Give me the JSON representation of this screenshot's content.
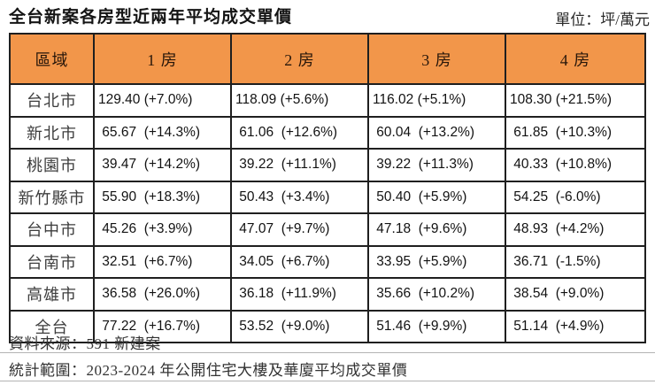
{
  "header": {
    "title": "全台新案各房型近兩年平均成交單價",
    "unit_label": "單位：坪/萬元"
  },
  "table": {
    "columns": [
      "區域",
      "1 房",
      "2 房",
      "3 房",
      "4 房"
    ],
    "rows": [
      {
        "region": "台北市",
        "cells": [
          "129.40 (+7.0%)",
          "118.09 (+5.6%)",
          "116.02 (+5.1%)",
          "108.30 (+21.5%)"
        ]
      },
      {
        "region": "新北市",
        "cells": [
          " 65.67  (+14.3%)",
          " 61.06  (+12.6%)",
          " 60.04  (+13.2%)",
          " 61.85  (+10.3%)"
        ]
      },
      {
        "region": "桃園市",
        "cells": [
          " 39.47  (+14.2%)",
          " 39.22  (+11.1%)",
          " 39.22  (+11.3%)",
          " 40.33  (+10.8%)"
        ]
      },
      {
        "region": "新竹縣市",
        "cells": [
          " 55.90  (+18.3%)",
          " 50.43  (+3.4%)",
          " 50.40  (+5.9%)",
          " 54.25  (-6.0%)"
        ]
      },
      {
        "region": "台中市",
        "cells": [
          " 45.26  (+3.9%)",
          " 47.07  (+9.7%)",
          " 47.18  (+9.6%)",
          " 48.93  (+4.2%)"
        ]
      },
      {
        "region": "台南市",
        "cells": [
          " 32.51  (+6.7%)",
          " 34.05  (+6.7%)",
          " 33.95  (+5.9%)",
          " 36.71  (-1.5%)"
        ]
      },
      {
        "region": "高雄市",
        "cells": [
          " 36.58  (+26.0%)",
          " 36.18  (+11.9%)",
          " 35.66  (+10.2%)",
          " 38.54  (+9.0%)"
        ]
      },
      {
        "region": "全台",
        "cells": [
          " 77.22  (+16.7%)",
          " 53.52  (+9.0%)",
          " 51.46  (+9.9%)",
          " 51.14  (+4.9%)"
        ]
      }
    ]
  },
  "footer": {
    "source": "資料來源：591 新建案",
    "scope": "統計範圍：2023-2024 年公開住宅大樓及華廈平均成交單價"
  },
  "colors": {
    "header_bg": "#F2964A",
    "table_border": "#1f1f1f",
    "divider": "#b3b3b3"
  },
  "chart_data": {
    "type": "table",
    "title": "全台新案各房型近兩年平均成交單價",
    "unit": "坪/萬元",
    "columns": [
      "1房",
      "2房",
      "3房",
      "4房"
    ],
    "series": [
      {
        "region": "台北市",
        "values": [
          129.4,
          118.09,
          116.02,
          108.3
        ],
        "change_pct": [
          7.0,
          5.6,
          5.1,
          21.5
        ]
      },
      {
        "region": "新北市",
        "values": [
          65.67,
          61.06,
          60.04,
          61.85
        ],
        "change_pct": [
          14.3,
          12.6,
          13.2,
          10.3
        ]
      },
      {
        "region": "桃園市",
        "values": [
          39.47,
          39.22,
          39.22,
          40.33
        ],
        "change_pct": [
          14.2,
          11.1,
          11.3,
          10.8
        ]
      },
      {
        "region": "新竹縣市",
        "values": [
          55.9,
          50.43,
          50.4,
          54.25
        ],
        "change_pct": [
          18.3,
          3.4,
          5.9,
          -6.0
        ]
      },
      {
        "region": "台中市",
        "values": [
          45.26,
          47.07,
          47.18,
          48.93
        ],
        "change_pct": [
          3.9,
          9.7,
          9.6,
          4.2
        ]
      },
      {
        "region": "台南市",
        "values": [
          32.51,
          34.05,
          33.95,
          36.71
        ],
        "change_pct": [
          6.7,
          6.7,
          5.9,
          -1.5
        ]
      },
      {
        "region": "高雄市",
        "values": [
          36.58,
          36.18,
          35.66,
          38.54
        ],
        "change_pct": [
          26.0,
          11.9,
          10.2,
          9.0
        ]
      },
      {
        "region": "全台",
        "values": [
          77.22,
          53.52,
          51.46,
          51.14
        ],
        "change_pct": [
          16.7,
          9.0,
          9.9,
          4.9
        ]
      }
    ],
    "source": "591 新建案",
    "scope": "2023-2024 年公開住宅大樓及華廈平均成交單價"
  }
}
